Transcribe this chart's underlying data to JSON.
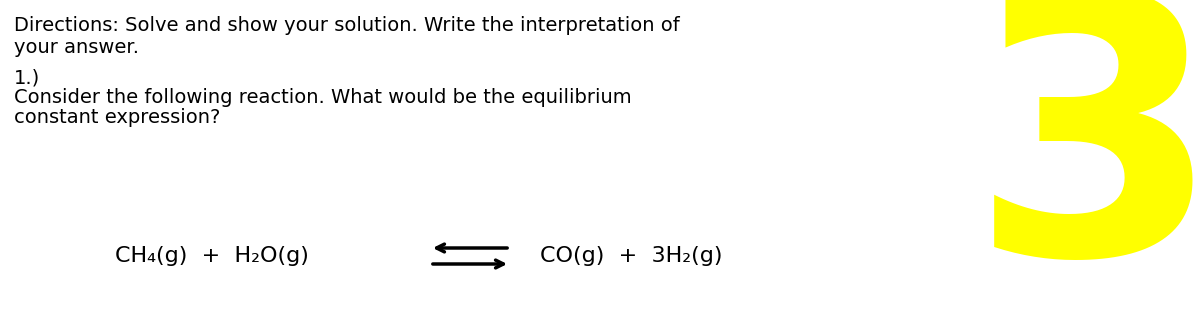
{
  "background_color": "#ffffff",
  "directions_line1": "Directions: Solve and show your solution. Write the interpretation of",
  "directions_line2": "your answer.",
  "number_label": "1.)",
  "question_line1": "Consider the following reaction. What would be the equilibrium",
  "question_line2": "constant expression?",
  "reaction_left": "CH₄(g)  +  H₂O(g)",
  "reaction_right": "CO(g)  +  3H₂(g)",
  "number_big": "3",
  "number_color": "#ffff00",
  "text_color": "#000000",
  "directions_fontsize": 14,
  "reaction_fontsize": 16,
  "big_number_fontsize": 260,
  "fig_width": 12.0,
  "fig_height": 3.16
}
